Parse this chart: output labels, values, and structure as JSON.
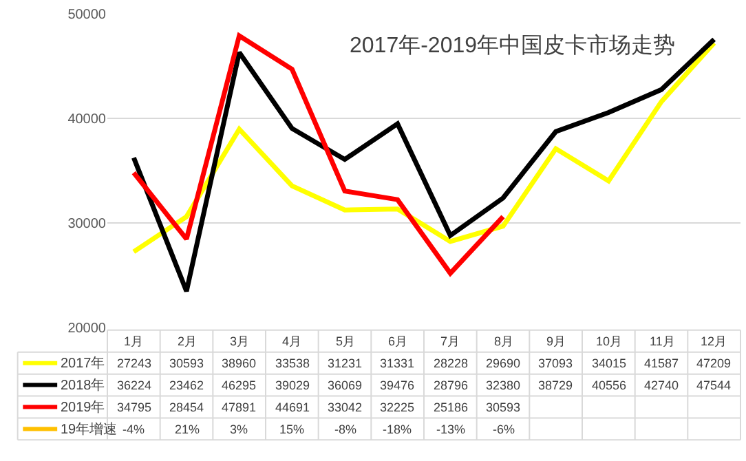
{
  "chart_data": {
    "type": "line",
    "title": "2017年-2019年中国皮卡市场走势",
    "categories": [
      "1月",
      "2月",
      "3月",
      "4月",
      "5月",
      "6月",
      "7月",
      "8月",
      "9月",
      "10月",
      "11月",
      "12月"
    ],
    "ylim": [
      20000,
      50000
    ],
    "yticks": [
      20000,
      30000,
      40000,
      50000
    ],
    "grid": "y",
    "legend": "bottom",
    "data_labels": true,
    "tick_labels": "y",
    "series": [
      {
        "name": "2017年",
        "color": "#ffff00",
        "values": [
          27243,
          30593,
          38960,
          33538,
          31231,
          31331,
          28228,
          29690,
          37093,
          34015,
          41587,
          47209
        ]
      },
      {
        "name": "2018年",
        "color": "#000000",
        "values": [
          36224,
          23462,
          46295,
          39029,
          36069,
          39476,
          28796,
          32380,
          38729,
          40556,
          42740,
          47544
        ]
      },
      {
        "name": "2019年",
        "color": "#ff0000",
        "values": [
          34795,
          28454,
          47891,
          44691,
          33042,
          32225,
          25186,
          30593,
          null,
          null,
          null,
          null
        ]
      },
      {
        "name": "19年增速",
        "color": "#ffc000",
        "values": [
          null,
          null,
          null,
          null,
          null,
          null,
          null,
          null,
          null,
          null,
          null,
          null
        ],
        "value_labels": [
          "-4%",
          "21%",
          "3%",
          "15%",
          "-8%",
          "-18%",
          "-13%",
          "-6%",
          null,
          null,
          null,
          null
        ]
      }
    ]
  }
}
